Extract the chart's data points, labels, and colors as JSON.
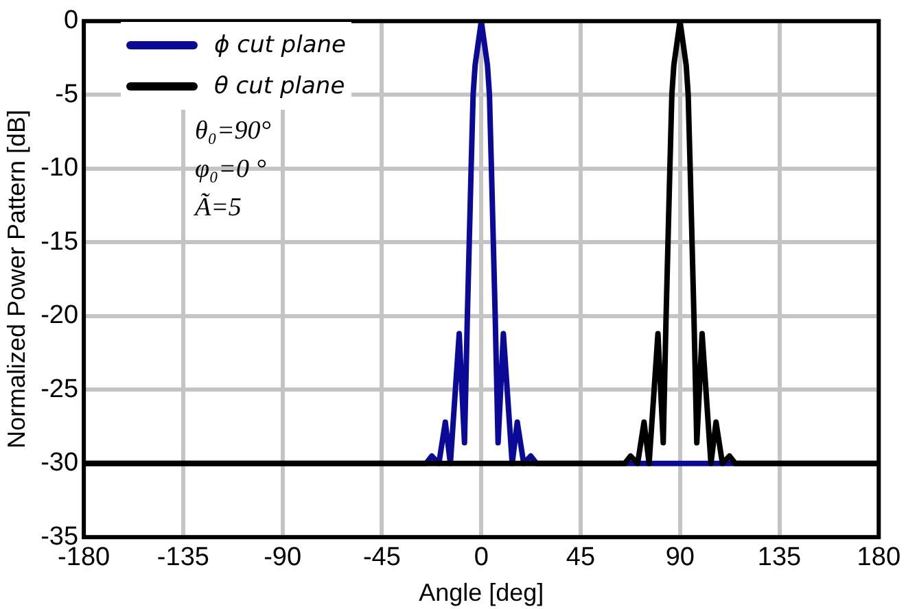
{
  "chart_data": {
    "type": "line",
    "xlabel": "Angle [deg]",
    "ylabel": "Normalized Power Pattern [dB]",
    "xlim": [
      -180,
      180
    ],
    "xticks": [
      -180,
      -135,
      -90,
      -45,
      0,
      45,
      90,
      135,
      180
    ],
    "ylim": [
      -35,
      0
    ],
    "yticks": [
      -35,
      -30,
      -25,
      -20,
      -15,
      -10,
      -5,
      0
    ],
    "grid": true,
    "legend": "top left",
    "marker": "none",
    "line_style": "solid",
    "annotations": [
      "θ₀=90°",
      "φ₀=0 °",
      "Ã=5"
    ],
    "series": [
      {
        "name": "ϕ cut plane",
        "color": "#0a0a96",
        "x": [
          -180,
          -25,
          -22.4,
          -19.2,
          -16.3,
          -14,
          -10,
          -7.6,
          -6.3,
          -4.6,
          -3.7,
          -2.8,
          0,
          2.8,
          3.7,
          4.6,
          6.3,
          7.6,
          10,
          14,
          16.3,
          19.2,
          22.4,
          25,
          180
        ],
        "values": [
          -30,
          -30,
          -29.5,
          -30,
          -27.2,
          -30,
          -21.2,
          -28.6,
          -20,
          -10,
          -5,
          -3,
          0,
          -3,
          -5,
          -10,
          -20,
          -28.6,
          -21.2,
          -30,
          -27.2,
          -30,
          -29.5,
          -30,
          -30
        ]
      },
      {
        "name": "θ cut plane",
        "color": "#000000",
        "x": [
          -180,
          65,
          67.6,
          70.8,
          73.7,
          76,
          80,
          82.4,
          83.7,
          85.4,
          86.3,
          87.2,
          90,
          92.8,
          93.7,
          94.6,
          96.3,
          97.6,
          100,
          104,
          106.3,
          109.2,
          112.4,
          115,
          180
        ],
        "values": [
          -30,
          -30,
          -29.5,
          -30,
          -27.2,
          -30,
          -21.2,
          -28.6,
          -20,
          -10,
          -5,
          -3,
          0,
          -3,
          -5,
          -10,
          -20,
          -28.6,
          -21.2,
          -30,
          -27.2,
          -30,
          -29.5,
          -30,
          -30
        ]
      }
    ]
  }
}
